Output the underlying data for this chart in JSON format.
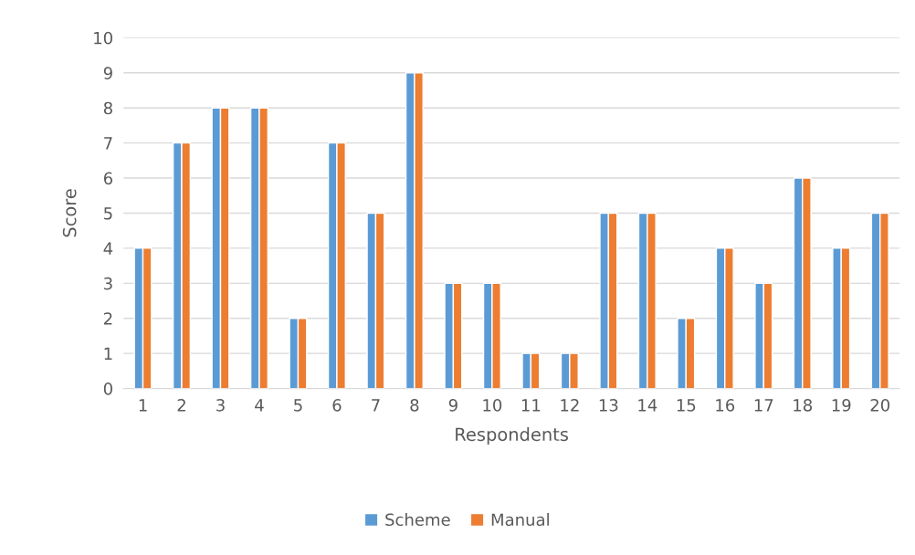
{
  "chart_data": {
    "type": "bar",
    "xlabel": "Respondents",
    "ylabel": "Score",
    "categories": [
      "1",
      "2",
      "3",
      "4",
      "5",
      "6",
      "7",
      "8",
      "9",
      "10",
      "11",
      "12",
      "13",
      "14",
      "15",
      "16",
      "17",
      "18",
      "19",
      "20"
    ],
    "series": [
      {
        "name": "Scheme",
        "color": "#5b9bd5",
        "values": [
          4,
          7,
          8,
          8,
          2,
          7,
          5,
          9,
          3,
          3,
          1,
          1,
          5,
          5,
          2,
          4,
          3,
          6,
          4,
          5
        ]
      },
      {
        "name": "Manual",
        "color": "#ed7d31",
        "values": [
          4,
          7,
          8,
          8,
          2,
          7,
          5,
          9,
          3,
          3,
          1,
          1,
          5,
          5,
          2,
          4,
          3,
          6,
          4,
          5
        ]
      }
    ],
    "ylim": [
      0,
      10
    ],
    "yticks": [
      0,
      1,
      2,
      3,
      4,
      5,
      6,
      7,
      8,
      9,
      10
    ],
    "grid": "y",
    "legend": "bottom"
  }
}
